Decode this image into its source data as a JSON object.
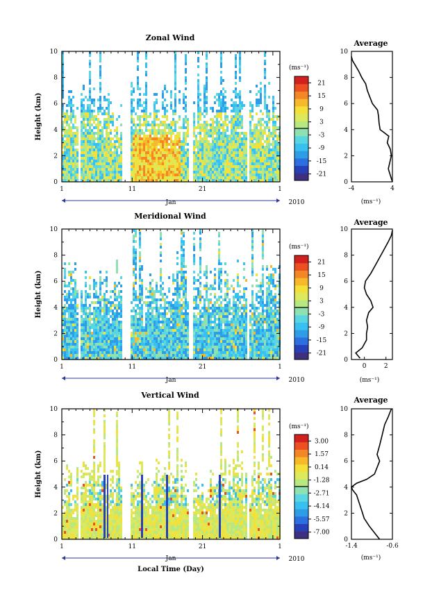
{
  "xlabel": "Local Time (Day)",
  "x_ticks": [
    "1",
    "11",
    "21",
    "1"
  ],
  "month_label": "Jan",
  "year_label": "2010",
  "avg_title": "Average",
  "avg_unit": "(ms⁻¹)",
  "colors": [
    "#3f2f7f",
    "#2740b8",
    "#2c6fe0",
    "#2f9ce8",
    "#38c1f0",
    "#5ad6e2",
    "#8fe1b2",
    "#b8e882",
    "#dce95c",
    "#f3e13a",
    "#f7b92a",
    "#f38727",
    "#ec4f22",
    "#d2201f"
  ],
  "panels": [
    {
      "title": "Zonal Wind",
      "ylabel": "Height (km)",
      "cbar_unit": "(ms⁻¹)",
      "cbar_ticks": [
        "21",
        "15",
        "9",
        "3",
        "-3",
        "-9",
        "-15",
        "-21"
      ]
    },
    {
      "title": "Meridional Wind",
      "ylabel": "Height (km)",
      "cbar_unit": "(ms⁻¹)",
      "cbar_ticks": [
        "21",
        "15",
        "9",
        "3",
        "-3",
        "-9",
        "-15",
        "-21"
      ]
    },
    {
      "title": "Vertical Wind",
      "ylabel": "Height (km)",
      "cbar_unit": "(ms⁻¹)",
      "cbar_ticks": [
        "3.00",
        "1.57",
        "0.14",
        "-1.28",
        "-2.71",
        "-4.14",
        "-5.57",
        "-7.00"
      ]
    }
  ],
  "chart_data": [
    {
      "type": "heatmap",
      "title": "Zonal Wind",
      "xlabel": "Jan 2010",
      "ylabel": "Height (km)",
      "x_range_days": [
        1,
        32
      ],
      "ylim": [
        0,
        10
      ],
      "y_ticks": [
        0,
        2,
        4,
        6,
        8,
        10
      ],
      "colorbar_range": [
        -21,
        21
      ],
      "colorbar_ticks": [
        21,
        15,
        9,
        3,
        -3,
        -9,
        -15,
        -21
      ],
      "colorbar_unit": "(ms⁻¹)"
    },
    {
      "type": "line",
      "title": "Average",
      "xlabel": "(ms⁻¹)",
      "xlim": [
        -4,
        4
      ],
      "x_ticks": [
        -4,
        4
      ],
      "ylim": [
        0,
        10
      ],
      "y_ticks": [
        0,
        2,
        4,
        6,
        8,
        10
      ],
      "points": [
        [
          4.0,
          0.0
        ],
        [
          3.6,
          0.5
        ],
        [
          3.2,
          1.0
        ],
        [
          3.5,
          1.5
        ],
        [
          3.8,
          2.0
        ],
        [
          3.6,
          2.5
        ],
        [
          3.0,
          3.0
        ],
        [
          3.3,
          3.5
        ],
        [
          2.3,
          3.8
        ],
        [
          1.6,
          4.0
        ],
        [
          1.4,
          4.5
        ],
        [
          1.3,
          5.0
        ],
        [
          1.1,
          5.5
        ],
        [
          0.1,
          6.0
        ],
        [
          -0.4,
          6.5
        ],
        [
          -0.9,
          7.0
        ],
        [
          -1.2,
          7.5
        ],
        [
          -2.0,
          8.0
        ],
        [
          -2.6,
          8.5
        ],
        [
          -3.2,
          8.9
        ],
        [
          -3.8,
          9.3
        ],
        [
          -4.0,
          9.6
        ]
      ]
    },
    {
      "type": "heatmap",
      "title": "Meridional Wind",
      "xlabel": "Jan 2010",
      "ylabel": "Height (km)",
      "x_range_days": [
        1,
        32
      ],
      "ylim": [
        0,
        10
      ],
      "y_ticks": [
        0,
        2,
        4,
        6,
        8,
        10
      ],
      "colorbar_range": [
        -21,
        21
      ],
      "colorbar_ticks": [
        21,
        15,
        9,
        3,
        -3,
        -9,
        -15,
        -21
      ],
      "colorbar_unit": "(ms⁻¹)"
    },
    {
      "type": "line",
      "title": "Average",
      "xlabel": "(ms⁻¹)",
      "xlim": [
        -1.2,
        2.6
      ],
      "x_ticks": [
        0,
        2
      ],
      "ylim": [
        0,
        10
      ],
      "y_ticks": [
        0,
        2,
        4,
        6,
        8,
        10
      ],
      "points": [
        [
          -0.4,
          0.1
        ],
        [
          -0.8,
          0.5
        ],
        [
          -0.2,
          0.9
        ],
        [
          0.2,
          1.5
        ],
        [
          0.2,
          2.0
        ],
        [
          0.3,
          2.5
        ],
        [
          0.2,
          3.0
        ],
        [
          0.4,
          3.6
        ],
        [
          0.8,
          4.0
        ],
        [
          0.6,
          4.5
        ],
        [
          0.2,
          5.0
        ],
        [
          0.0,
          5.5
        ],
        [
          0.1,
          6.0
        ],
        [
          0.6,
          6.6
        ],
        [
          1.0,
          7.2
        ],
        [
          1.4,
          7.8
        ],
        [
          1.8,
          8.4
        ],
        [
          2.2,
          9.0
        ],
        [
          2.5,
          9.5
        ],
        [
          2.6,
          9.9
        ]
      ]
    },
    {
      "type": "heatmap",
      "title": "Vertical Wind",
      "xlabel": "Local Time (Day)",
      "ylabel": "Height (km)",
      "x_range_days": [
        1,
        32
      ],
      "ylim": [
        0,
        10
      ],
      "y_ticks": [
        0,
        2,
        4,
        6,
        8,
        10
      ],
      "colorbar_range": [
        -7.0,
        3.0
      ],
      "colorbar_ticks": [
        3.0,
        1.57,
        0.14,
        -1.28,
        -2.71,
        -4.14,
        -5.57,
        -7.0
      ],
      "colorbar_unit": "(ms⁻¹)"
    },
    {
      "type": "line",
      "title": "Average",
      "xlabel": "(ms⁻¹)",
      "xlim": [
        -1.4,
        -0.6
      ],
      "x_ticks": [
        -1.4,
        -0.6
      ],
      "ylim": [
        0,
        10
      ],
      "y_ticks": [
        0,
        2,
        4,
        6,
        8,
        10
      ],
      "points": [
        [
          -0.85,
          0.0
        ],
        [
          -0.95,
          0.5
        ],
        [
          -1.05,
          1.0
        ],
        [
          -1.15,
          1.6
        ],
        [
          -1.2,
          2.2
        ],
        [
          -1.25,
          2.8
        ],
        [
          -1.3,
          3.4
        ],
        [
          -1.38,
          3.8
        ],
        [
          -1.4,
          4.0
        ],
        [
          -1.3,
          4.3
        ],
        [
          -1.1,
          4.6
        ],
        [
          -0.95,
          5.0
        ],
        [
          -0.9,
          5.5
        ],
        [
          -0.85,
          6.0
        ],
        [
          -0.9,
          6.5
        ],
        [
          -0.85,
          7.2
        ],
        [
          -0.8,
          8.0
        ],
        [
          -0.75,
          8.8
        ],
        [
          -0.68,
          9.4
        ],
        [
          -0.62,
          10.0
        ]
      ]
    }
  ]
}
